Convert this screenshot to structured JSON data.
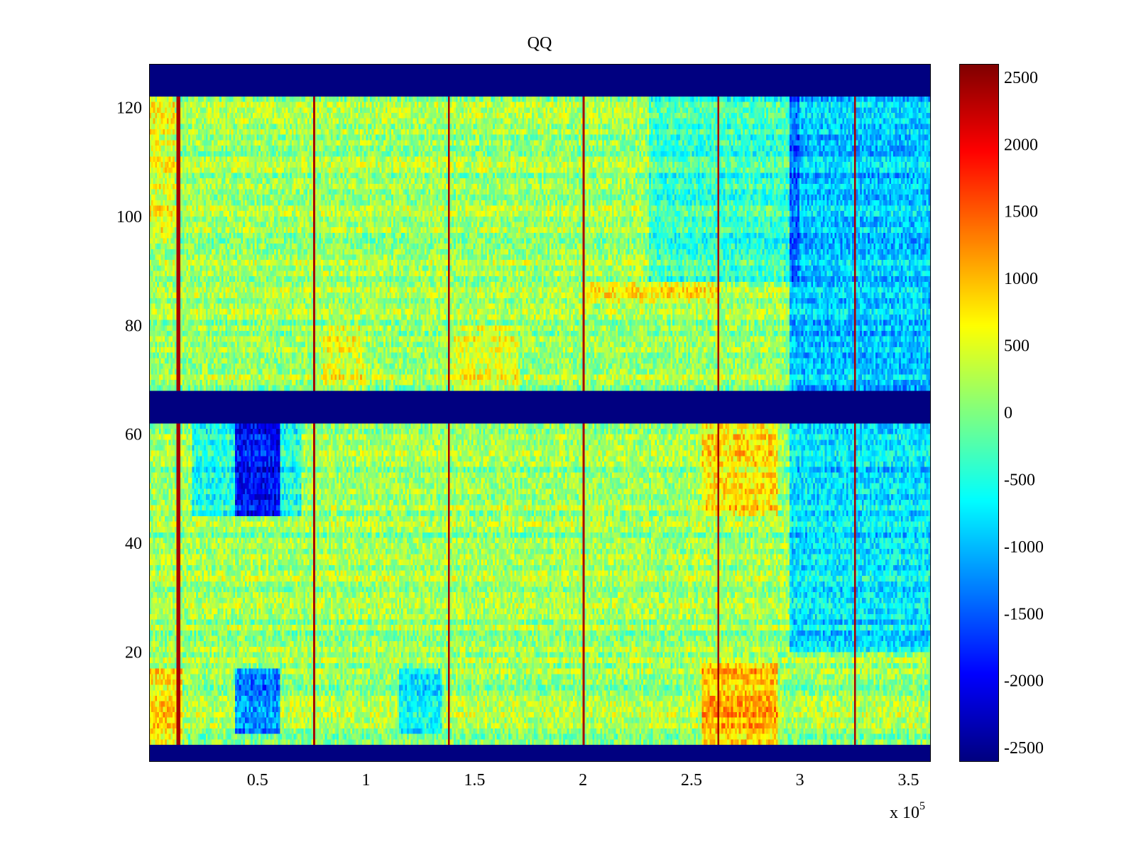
{
  "chart_data": {
    "type": "heatmap",
    "title": "QQ",
    "xlabel": "",
    "ylabel": "",
    "x_exponent_label": {
      "base": "x 10",
      "exponent": "5"
    },
    "xlim": [
      0,
      360000
    ],
    "ylim": [
      0,
      128
    ],
    "x_ticks": [
      {
        "value": 50000,
        "label": "0.5"
      },
      {
        "value": 100000,
        "label": "1"
      },
      {
        "value": 150000,
        "label": "1.5"
      },
      {
        "value": 200000,
        "label": "2"
      },
      {
        "value": 250000,
        "label": "2.5"
      },
      {
        "value": 300000,
        "label": "3"
      },
      {
        "value": 350000,
        "label": "3.5"
      }
    ],
    "y_ticks": [
      {
        "value": 20,
        "label": "20"
      },
      {
        "value": 40,
        "label": "40"
      },
      {
        "value": 60,
        "label": "60"
      },
      {
        "value": 80,
        "label": "80"
      },
      {
        "value": 100,
        "label": "100"
      },
      {
        "value": 120,
        "label": "120"
      }
    ],
    "colormap": "jet",
    "clim": [
      -2600,
      2600
    ],
    "colorbar_ticks": [
      {
        "value": 2500,
        "label": "2500"
      },
      {
        "value": 2000,
        "label": "2000"
      },
      {
        "value": 1500,
        "label": "1500"
      },
      {
        "value": 1000,
        "label": "1000"
      },
      {
        "value": 500,
        "label": "500"
      },
      {
        "value": 0,
        "label": "0"
      },
      {
        "value": -500,
        "label": "-500"
      },
      {
        "value": -1000,
        "label": "-1000"
      },
      {
        "value": -1500,
        "label": "-1500"
      },
      {
        "value": -2000,
        "label": "-2000"
      },
      {
        "value": -2500,
        "label": "-2500"
      }
    ],
    "masked_row_bands": [
      {
        "y_from": 0,
        "y_to": 3,
        "value": -2600
      },
      {
        "y_from": 62,
        "y_to": 68,
        "value": -2600
      },
      {
        "y_from": 122,
        "y_to": 128,
        "value": -2600
      }
    ],
    "vertical_spike_lines_x": [
      13500,
      76000,
      138000,
      200000,
      262000,
      325000
    ],
    "spike_value": 2400,
    "background_value": 150,
    "hot_regions": [
      {
        "x": [
          0,
          15000
        ],
        "y": [
          3,
          17
        ],
        "value": 900
      },
      {
        "x": [
          255000,
          290000
        ],
        "y": [
          3,
          18
        ],
        "value": 1200
      },
      {
        "x": [
          255000,
          290000
        ],
        "y": [
          45,
          62
        ],
        "value": 900
      },
      {
        "x": [
          80000,
          100000
        ],
        "y": [
          68,
          80
        ],
        "value": 600
      },
      {
        "x": [
          140000,
          170000
        ],
        "y": [
          68,
          80
        ],
        "value": 600
      },
      {
        "x": [
          0,
          12000
        ],
        "y": [
          95,
          122
        ],
        "value": 600
      },
      {
        "x": [
          200000,
          262000
        ],
        "y": [
          84,
          88
        ],
        "value": 700
      }
    ],
    "cold_regions": [
      {
        "x": [
          40000,
          60000
        ],
        "y": [
          5,
          17
        ],
        "value": -1700
      },
      {
        "x": [
          40000,
          60000
        ],
        "y": [
          45,
          62
        ],
        "value": -1600
      },
      {
        "x": [
          20000,
          70000
        ],
        "y": [
          45,
          62
        ],
        "value": -700
      },
      {
        "x": [
          115000,
          135000
        ],
        "y": [
          5,
          17
        ],
        "value": -900
      },
      {
        "x": [
          295000,
          360000
        ],
        "y": [
          20,
          62
        ],
        "value": -1000
      },
      {
        "x": [
          295000,
          360000
        ],
        "y": [
          68,
          122
        ],
        "value": -1200
      },
      {
        "x": [
          230000,
          300000
        ],
        "y": [
          88,
          122
        ],
        "value": -500
      }
    ]
  }
}
